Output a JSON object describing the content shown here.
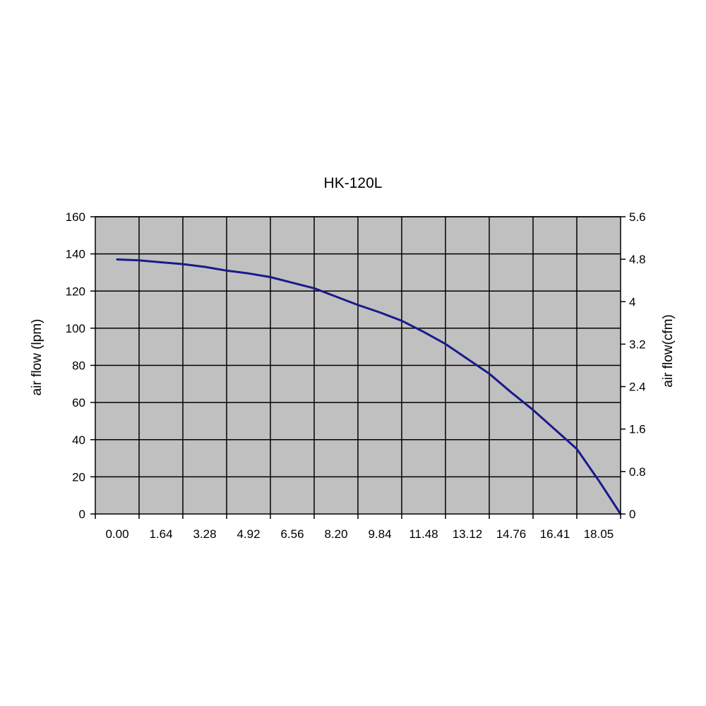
{
  "chart_data": {
    "type": "line",
    "title": "HK-120L",
    "xlabel": "",
    "ylabel": "air flow (lpm)",
    "y2label": "air flow(cfm)",
    "x_tick_labels": [
      "0.00",
      "1.64",
      "3.28",
      "4.92",
      "6.56",
      "8.20",
      "9.84",
      "11.48",
      "13.12",
      "14.76",
      "16.41",
      "18.05"
    ],
    "yticks": [
      "0",
      "20",
      "40",
      "60",
      "80",
      "100",
      "120",
      "140",
      "160"
    ],
    "y2ticks": [
      "0",
      "0.8",
      "1.6",
      "2.4",
      "3.2",
      "4",
      "4.8",
      "5.6"
    ],
    "ylim": [
      0,
      160
    ],
    "y2lim": [
      0,
      5.6
    ],
    "xlim": [
      0,
      12
    ],
    "grid": true,
    "plot_background": "#c0c0c0",
    "series": [
      {
        "color": "#1a1a8c",
        "x": [
          0.5,
          1.0,
          1.5,
          2.0,
          2.5,
          3.0,
          3.5,
          4.0,
          4.5,
          5.0,
          5.5,
          6.0,
          6.5,
          7.0,
          7.5,
          8.0,
          8.5,
          9.0,
          9.5,
          10.0,
          10.5,
          11.0,
          11.5,
          12.0
        ],
        "y": [
          137,
          136.5,
          135.5,
          134.5,
          133,
          131,
          129.5,
          127.5,
          124.5,
          121.5,
          117,
          112.5,
          108.5,
          104,
          98,
          91.5,
          83.5,
          75.5,
          65.5,
          56,
          45.5,
          35,
          18,
          0
        ]
      }
    ]
  }
}
